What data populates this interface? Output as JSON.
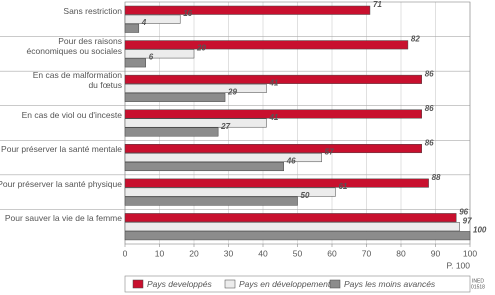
{
  "chart_data": {
    "type": "bar",
    "orientation": "horizontal",
    "categories": [
      "Sans restriction",
      "Pour des raisons\néconomiques ou sociales",
      "En cas de malformation\ndu fœtus",
      "En cas de viol ou d'inceste",
      "Pour préserver la santé mentale",
      "Pour préserver la santé physique",
      "Pour sauver la vie de la femme"
    ],
    "series": [
      {
        "name": "Pays developpés",
        "color": "#c8102e",
        "values": [
          71,
          82,
          86,
          86,
          86,
          88,
          96
        ]
      },
      {
        "name": "Pays en développement",
        "color": "#ececec",
        "values": [
          16,
          20,
          41,
          41,
          57,
          61,
          97
        ]
      },
      {
        "name": "Pays les moins avancés",
        "color": "#8c8c8c",
        "values": [
          4,
          6,
          29,
          27,
          46,
          50,
          100
        ]
      }
    ],
    "xlim": [
      0,
      100
    ],
    "xticks": [
      0,
      10,
      20,
      30,
      40,
      50,
      60,
      70,
      80,
      90,
      100
    ],
    "x_unit": "P. 100",
    "note": [
      "INED",
      "01518"
    ]
  }
}
